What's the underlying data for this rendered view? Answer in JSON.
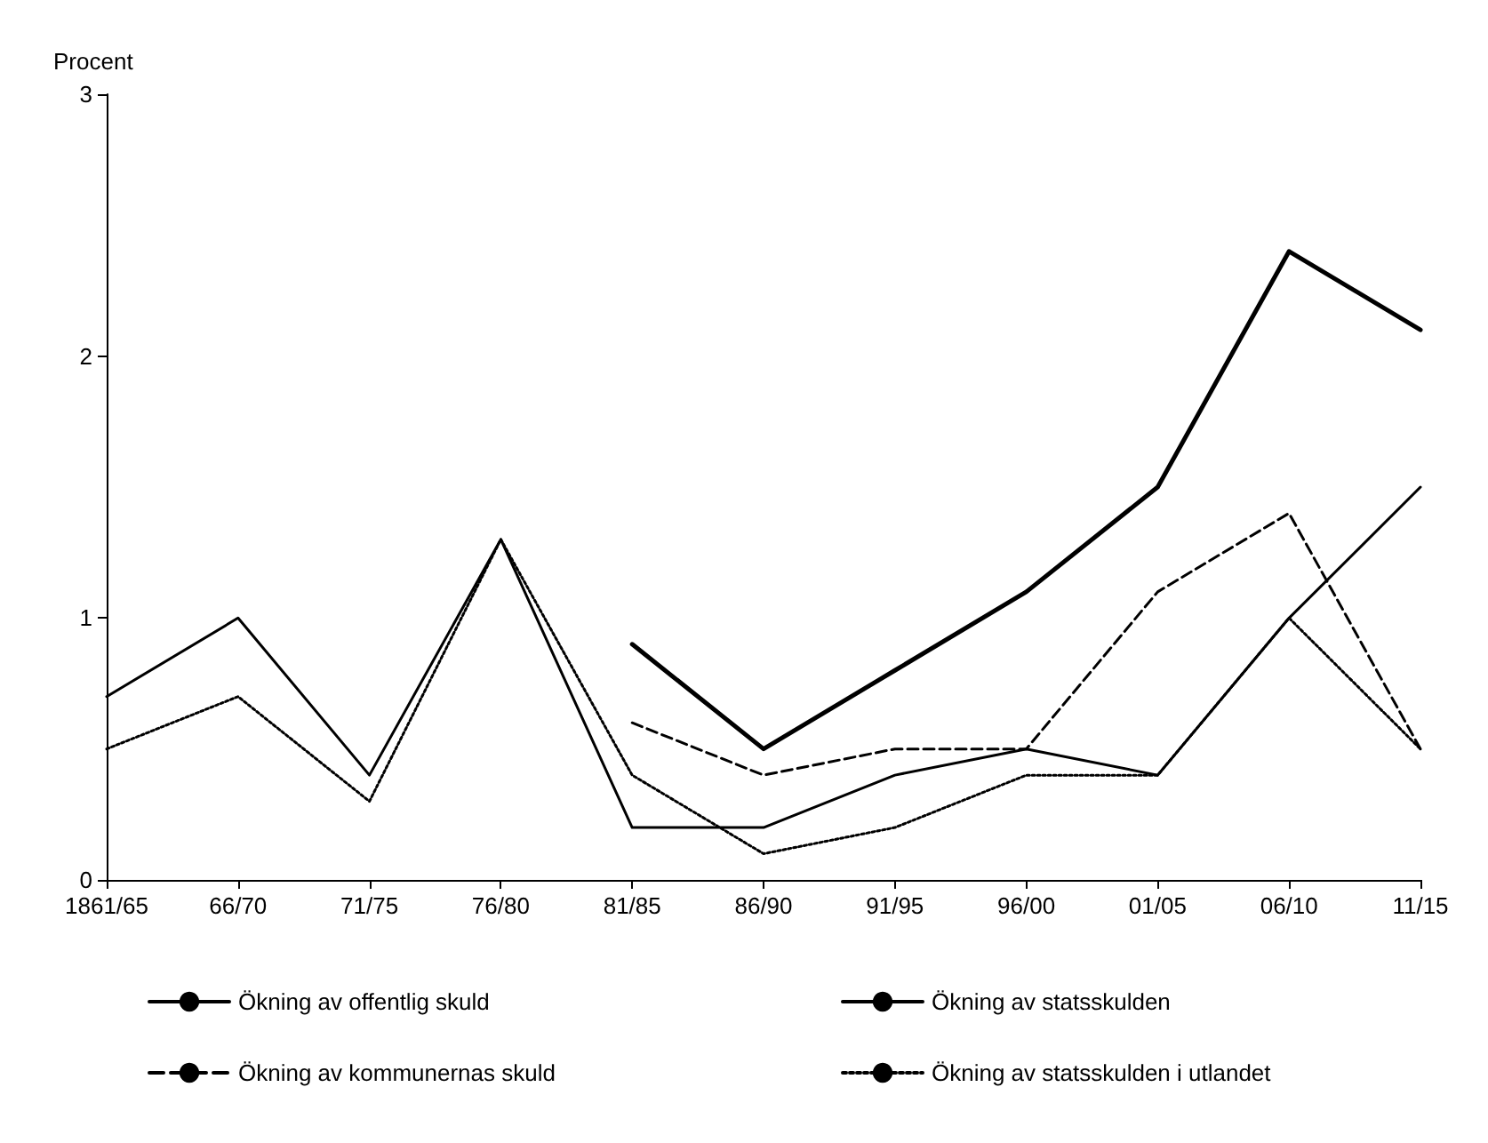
{
  "chart_data": {
    "type": "line",
    "ylabel": "Procent",
    "categories": [
      "1861/65",
      "66/70",
      "71/75",
      "76/80",
      "81/85",
      "86/90",
      "91/95",
      "96/00",
      "01/05",
      "06/10",
      "11/15"
    ],
    "ylim": [
      0,
      3
    ],
    "yticks": [
      0,
      1,
      2,
      3
    ],
    "grid": false,
    "legend": "bottom",
    "marker": "none",
    "series": [
      {
        "name": "Ökning av offentlig skuld",
        "color": "#000000",
        "line_style": "solid",
        "values": [
          null,
          null,
          null,
          null,
          0.9,
          0.5,
          0.8,
          1.1,
          1.5,
          2.4,
          2.1
        ]
      },
      {
        "name": "Ökning av statsskulden",
        "color": "#000000",
        "line_style": "solid",
        "values": [
          0.7,
          1.0,
          0.4,
          1.3,
          0.2,
          0.2,
          0.4,
          0.5,
          0.4,
          1.0,
          1.5
        ]
      },
      {
        "name": "Ökning av kommunernas skuld",
        "color": "#000000",
        "line_style": "dashed",
        "values": [
          null,
          null,
          null,
          null,
          0.6,
          0.4,
          0.5,
          0.5,
          1.1,
          1.4,
          0.5
        ]
      },
      {
        "name": "Ökning av statsskulden i utlandet",
        "color": "#000000",
        "line_style": "dotted",
        "values": [
          0.5,
          0.7,
          0.3,
          1.3,
          0.4,
          0.1,
          0.2,
          0.4,
          0.4,
          1.0,
          0.5
        ]
      }
    ]
  }
}
